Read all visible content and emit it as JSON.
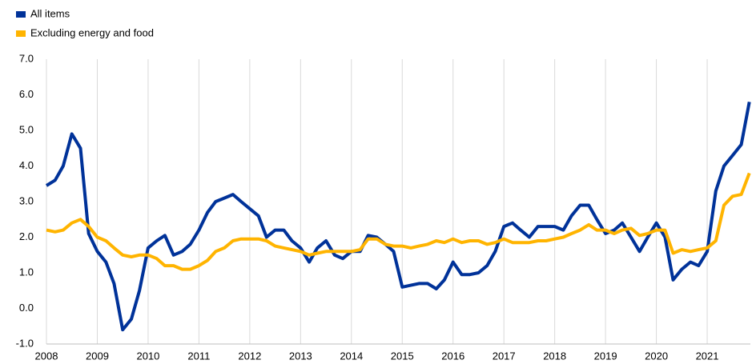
{
  "chart_data": {
    "type": "line",
    "x": [
      2008,
      2008.17,
      2008.33,
      2008.5,
      2008.67,
      2008.83,
      2009,
      2009.17,
      2009.33,
      2009.5,
      2009.67,
      2009.83,
      2010,
      2010.17,
      2010.33,
      2010.5,
      2010.67,
      2010.83,
      2011,
      2011.17,
      2011.33,
      2011.5,
      2011.67,
      2011.83,
      2012,
      2012.17,
      2012.33,
      2012.5,
      2012.67,
      2012.83,
      2013,
      2013.17,
      2013.33,
      2013.5,
      2013.67,
      2013.83,
      2014,
      2014.17,
      2014.33,
      2014.5,
      2014.67,
      2014.83,
      2015,
      2015.17,
      2015.33,
      2015.5,
      2015.67,
      2015.83,
      2016,
      2016.17,
      2016.33,
      2016.5,
      2016.67,
      2016.83,
      2017,
      2017.17,
      2017.33,
      2017.5,
      2017.67,
      2017.83,
      2018,
      2018.17,
      2018.33,
      2018.5,
      2018.67,
      2018.83,
      2019,
      2019.17,
      2019.33,
      2019.5,
      2019.67,
      2019.83,
      2020,
      2020.17,
      2020.33,
      2020.5,
      2020.67,
      2020.83,
      2021,
      2021.17,
      2021.33,
      2021.5,
      2021.67,
      2021.83
    ],
    "series": [
      {
        "name": "All items",
        "color": "#003299",
        "values": [
          3.45,
          3.6,
          4.0,
          4.9,
          4.5,
          2.1,
          1.6,
          1.3,
          0.7,
          -0.6,
          -0.3,
          0.5,
          1.7,
          1.9,
          2.05,
          1.5,
          1.6,
          1.8,
          2.2,
          2.7,
          3.0,
          3.1,
          3.2,
          3.0,
          2.8,
          2.6,
          2.0,
          2.2,
          2.2,
          1.9,
          1.7,
          1.3,
          1.7,
          1.9,
          1.5,
          1.4,
          1.6,
          1.6,
          2.05,
          2.0,
          1.8,
          1.6,
          0.6,
          0.65,
          0.7,
          0.7,
          0.55,
          0.8,
          1.3,
          0.95,
          0.95,
          1.0,
          1.2,
          1.6,
          2.3,
          2.4,
          2.2,
          2.0,
          2.3,
          2.3,
          2.3,
          2.2,
          2.6,
          2.9,
          2.9,
          2.5,
          2.1,
          2.2,
          2.4,
          2.0,
          1.6,
          2.0,
          2.4,
          2.0,
          0.8,
          1.1,
          1.3,
          1.2,
          1.6,
          3.3,
          4.0,
          4.3,
          4.6,
          5.8
        ]
      },
      {
        "name": "Excluding energy and food",
        "color": "#ffb400",
        "values": [
          2.2,
          2.15,
          2.2,
          2.4,
          2.5,
          2.3,
          2.0,
          1.9,
          1.7,
          1.5,
          1.45,
          1.5,
          1.5,
          1.4,
          1.2,
          1.2,
          1.1,
          1.1,
          1.2,
          1.35,
          1.6,
          1.7,
          1.9,
          1.95,
          1.95,
          1.95,
          1.9,
          1.75,
          1.7,
          1.65,
          1.6,
          1.5,
          1.55,
          1.6,
          1.6,
          1.6,
          1.6,
          1.65,
          1.95,
          1.95,
          1.8,
          1.75,
          1.75,
          1.7,
          1.75,
          1.8,
          1.9,
          1.85,
          1.95,
          1.85,
          1.9,
          1.9,
          1.8,
          1.85,
          1.95,
          1.85,
          1.85,
          1.85,
          1.9,
          1.9,
          1.95,
          2.0,
          2.1,
          2.2,
          2.35,
          2.2,
          2.2,
          2.1,
          2.2,
          2.25,
          2.05,
          2.1,
          2.2,
          2.2,
          1.55,
          1.65,
          1.6,
          1.65,
          1.7,
          1.9,
          2.9,
          3.15,
          3.2,
          3.8
        ]
      }
    ],
    "xlim": [
      2008,
      2021.85
    ],
    "xticks": [
      2008,
      2009,
      2010,
      2011,
      2012,
      2013,
      2014,
      2015,
      2016,
      2017,
      2018,
      2019,
      2020,
      2021
    ],
    "ylim": [
      -1,
      7
    ],
    "yticks": [
      {
        "value": -1,
        "label": "-1.0"
      },
      {
        "value": 0,
        "label": "0.0"
      },
      {
        "value": 1,
        "label": "1.0"
      },
      {
        "value": 2,
        "label": "2.0"
      },
      {
        "value": 3,
        "label": "3.0"
      },
      {
        "value": 4,
        "label": "4.0"
      },
      {
        "value": 5,
        "label": "5.0"
      },
      {
        "value": 6,
        "label": "6.0"
      },
      {
        "value": 7,
        "label": "7.0"
      }
    ],
    "grid": true,
    "legend": "top-left"
  }
}
